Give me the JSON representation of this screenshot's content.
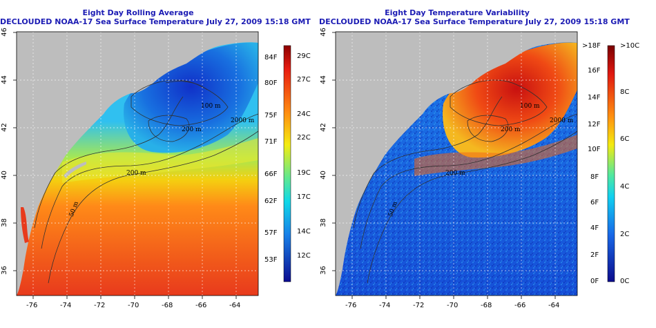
{
  "left": {
    "title1": "Eight Day Rolling Average",
    "title2": "DECLOUDED NOAA-17 Sea Surface Temperature July 27, 2009 15:18 GMT",
    "x_ticks": [
      "-76",
      "-74",
      "-72",
      "-70",
      "-68",
      "-66",
      "-64"
    ],
    "y_ticks": [
      "46",
      "44",
      "42",
      "40",
      "38",
      "36"
    ],
    "contours": [
      "200 m",
      "100 m",
      "200 m",
      "2000 m",
      "50 m"
    ],
    "legend_f": [
      "84F",
      "80F",
      "75F",
      "71F",
      "66F",
      "62F",
      "57F",
      "53F"
    ],
    "legend_c": [
      "29C",
      "27C",
      "24C",
      "22C",
      "19C",
      "17C",
      "14C",
      "12C"
    ]
  },
  "right": {
    "title1": "Eight Day Temperature Variability",
    "title2": "DECLOUDED NOAA-17 Sea Surface Temperature July 27, 2009 15:18 GMT",
    "x_ticks": [
      "-76",
      "-74",
      "-72",
      "-70",
      "-68",
      "-66",
      "-64"
    ],
    "y_ticks": [
      "46",
      "44",
      "42",
      "40",
      "38",
      "36"
    ],
    "contours": [
      "200 m",
      "100 m",
      "200 m",
      "2000 m",
      "50 m"
    ],
    "legend_f": [
      ">18F",
      "16F",
      "14F",
      "12F",
      "10F",
      "8F",
      "6F",
      "4F",
      "2F",
      "0F"
    ],
    "legend_c": [
      ">10C",
      "8C",
      "6C",
      "4C",
      "2C",
      "0C"
    ]
  },
  "colors": {
    "land": "#bdbdbd",
    "title": "#1c1cb4",
    "warm": "#e8371c",
    "cold": "#1438d0"
  }
}
